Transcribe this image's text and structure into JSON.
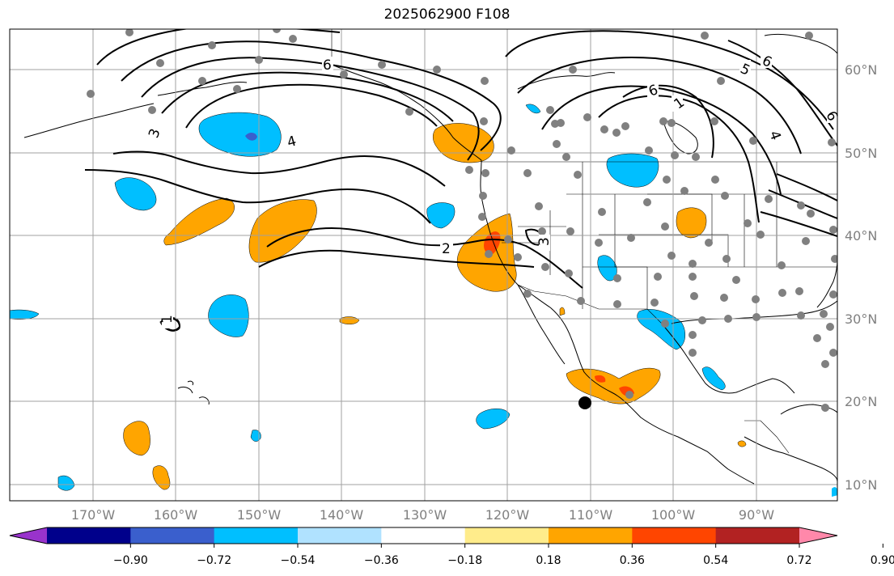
{
  "title": "2025062900 F108",
  "lat_labels": [
    "60°N",
    "50°N",
    "40°N",
    "30°N",
    "20°N",
    "10°N"
  ],
  "lon_labels": [
    "170°W",
    "160°W",
    "150°W",
    "140°W",
    "130°W",
    "120°W",
    "110°W",
    "100°W",
    "90°W"
  ],
  "contour_labels": [
    "6",
    "6",
    "5",
    "6",
    "4",
    "3",
    "4",
    "2",
    "3",
    "1",
    "1",
    "6"
  ],
  "colorbar": {
    "colors": [
      "#9933cc",
      "#00008b",
      "#3a5fcd",
      "#00bfff",
      "#b0e2ff",
      "#ffffff",
      "#ffec8b",
      "#ffa500",
      "#ff4500",
      "#b22222",
      "#ff88aa"
    ],
    "tick_labels": [
      "−0.90",
      "−0.72",
      "−0.54",
      "−0.36",
      "−0.18",
      "0.18",
      "0.36",
      "0.54",
      "0.72",
      "0.90"
    ]
  },
  "colors": {
    "positive_fill": "#ffa500",
    "positive_strong": "#ff4500",
    "negative_fill": "#00bfff",
    "negative_strong": "#3a5fcd",
    "station_dot": "#808080",
    "grid": "#a0a0a0"
  }
}
